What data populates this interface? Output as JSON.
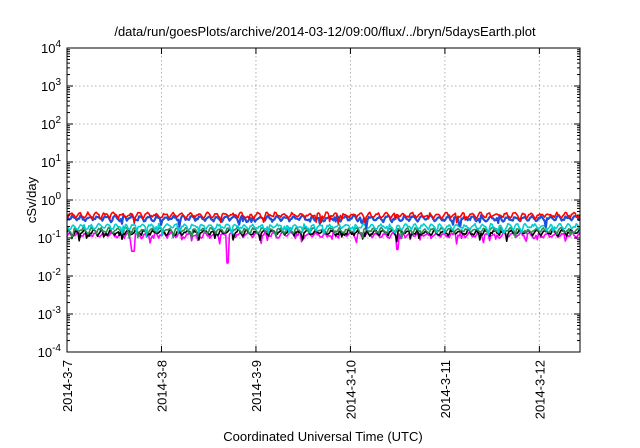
{
  "chart_data": {
    "type": "line",
    "title": "/data/run/goesPlots/archive/2014-03-12/09:00/flux/../bryn/5daysEarth.plot",
    "xlabel": "Coordinated Universal Time (UTC)",
    "ylabel": "cSv/day",
    "yscale": "log",
    "ylim": [
      0.0001,
      10000
    ],
    "y_ticks": [
      {
        "value": -4,
        "label": "10",
        "exp": "-4"
      },
      {
        "value": -3,
        "label": "10",
        "exp": "-3"
      },
      {
        "value": -2,
        "label": "10",
        "exp": "-2"
      },
      {
        "value": -1,
        "label": "10",
        "exp": "-1"
      },
      {
        "value": 0,
        "label": "10",
        "exp": "0"
      },
      {
        "value": 1,
        "label": "10",
        "exp": "1"
      },
      {
        "value": 2,
        "label": "10",
        "exp": "2"
      },
      {
        "value": 3,
        "label": "10",
        "exp": "3"
      },
      {
        "value": 4,
        "label": "10",
        "exp": "4"
      }
    ],
    "x_ticks": [
      "2014-3-7",
      "2014-3-8",
      "2014-3-9",
      "2014-3-10",
      "2014-3-11",
      "2014-3-12"
    ],
    "xlim": [
      0,
      5.43
    ],
    "grid": true,
    "series": [
      {
        "color": "#ff00ff",
        "base": 0.12,
        "dips": [
          [
            0.7,
            0.045
          ],
          [
            1.7,
            0.022
          ],
          [
            3.5,
            0.05
          ]
        ]
      },
      {
        "color": "#000000",
        "base": 0.14,
        "dips": []
      },
      {
        "color": "#2e8b57",
        "base": 0.16,
        "dips": []
      },
      {
        "color": "#00ced1",
        "base": 0.2,
        "dips": []
      },
      {
        "color": "#1e4fd8",
        "base": 0.33,
        "dips": []
      },
      {
        "color": "#ff0000",
        "base": 0.4,
        "dips": []
      }
    ]
  }
}
